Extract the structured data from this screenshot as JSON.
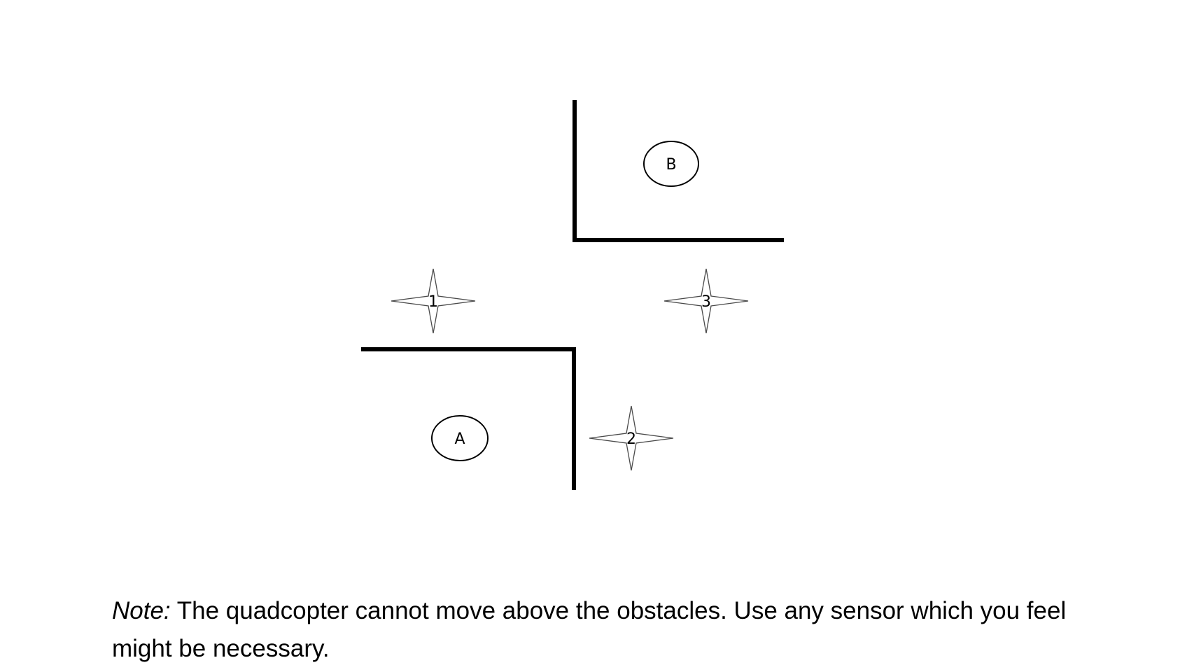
{
  "diagram": {
    "goals": [
      {
        "id": "A",
        "label": "A"
      },
      {
        "id": "B",
        "label": "B"
      }
    ],
    "drones": [
      {
        "id": "1",
        "label": "1"
      },
      {
        "id": "2",
        "label": "2"
      },
      {
        "id": "3",
        "label": "3"
      }
    ]
  },
  "note": {
    "label": "Note:",
    "text": " The quadcopter cannot move above the obstacles. Use any sensor which you feel might be necessary."
  }
}
